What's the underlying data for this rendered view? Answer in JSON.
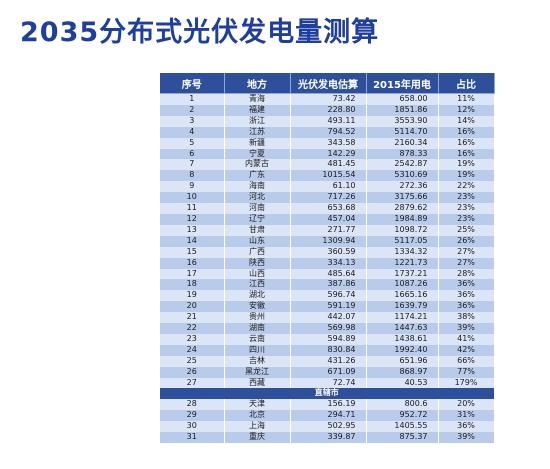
{
  "title": "2035分布式光伏发电量测算",
  "table": {
    "headers": [
      "序号",
      "地方",
      "光伏发电估算",
      "2015年用电",
      "占比"
    ],
    "rows": [
      [
        "1",
        "青海",
        "73.42",
        "658.00",
        "11%"
      ],
      [
        "2",
        "福建",
        "228.80",
        "1851.86",
        "12%"
      ],
      [
        "3",
        "浙江",
        "493.11",
        "3553.90",
        "14%"
      ],
      [
        "4",
        "江苏",
        "794.52",
        "5114.70",
        "16%"
      ],
      [
        "5",
        "新疆",
        "343.58",
        "2160.34",
        "16%"
      ],
      [
        "6",
        "宁夏",
        "142.29",
        "878.33",
        "16%"
      ],
      [
        "7",
        "内蒙古",
        "481.45",
        "2542.87",
        "19%"
      ],
      [
        "8",
        "广东",
        "1015.54",
        "5310.69",
        "19%"
      ],
      [
        "9",
        "海南",
        "61.10",
        "272.36",
        "22%"
      ],
      [
        "10",
        "河北",
        "717.26",
        "3175.66",
        "23%"
      ],
      [
        "11",
        "河南",
        "653.68",
        "2879.62",
        "23%"
      ],
      [
        "12",
        "辽宁",
        "457.04",
        "1984.89",
        "23%"
      ],
      [
        "13",
        "甘肃",
        "271.77",
        "1098.72",
        "25%"
      ],
      [
        "14",
        "山东",
        "1309.94",
        "5117.05",
        "26%"
      ],
      [
        "15",
        "广西",
        "360.59",
        "1334.32",
        "27%"
      ],
      [
        "16",
        "陕西",
        "334.13",
        "1221.73",
        "27%"
      ],
      [
        "17",
        "山西",
        "485.64",
        "1737.21",
        "28%"
      ],
      [
        "18",
        "江西",
        "387.86",
        "1087.26",
        "36%"
      ],
      [
        "19",
        "湖北",
        "596.74",
        "1665.16",
        "36%"
      ],
      [
        "20",
        "安徽",
        "591.19",
        "1639.79",
        "36%"
      ],
      [
        "21",
        "贵州",
        "442.07",
        "1174.21",
        "38%"
      ],
      [
        "22",
        "湖南",
        "569.98",
        "1447.63",
        "39%"
      ],
      [
        "23",
        "云南",
        "594.89",
        "1438.61",
        "41%"
      ],
      [
        "24",
        "四川",
        "830.84",
        "1992.40",
        "42%"
      ],
      [
        "25",
        "吉林",
        "431.26",
        "651.96",
        "66%"
      ],
      [
        "26",
        "黑龙江",
        "671.09",
        "868.97",
        "77%"
      ],
      [
        "27",
        "西藏",
        "72.74",
        "40.53",
        "179%"
      ]
    ],
    "section_label": "直辖市",
    "municipal_rows": [
      [
        "28",
        "天津",
        "156.19",
        "800.6",
        "20%"
      ],
      [
        "29",
        "北京",
        "294.71",
        "952.72",
        "31%"
      ],
      [
        "30",
        "上海",
        "502.95",
        "1405.55",
        "36%"
      ],
      [
        "31",
        "重庆",
        "339.87",
        "875.37",
        "39%"
      ]
    ]
  },
  "colors": {
    "title": "#1f3f9e",
    "header_bg": "#2e4f9a",
    "row_light": "#dbe5f5",
    "row_dark": "#b9cbea"
  }
}
